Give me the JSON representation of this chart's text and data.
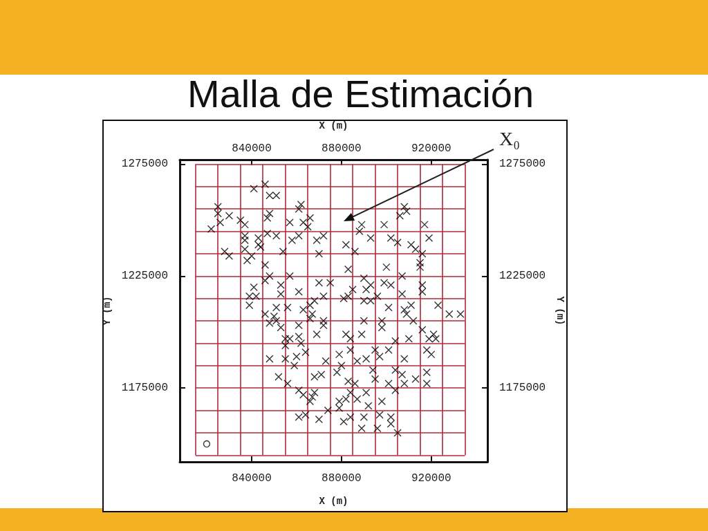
{
  "chart_data": {
    "type": "scatter",
    "title": "Malla de Estimación",
    "xlabel": "X (m)",
    "ylabel": "Y (m)",
    "x2label": "X (m)",
    "y2label": "Y (m)",
    "xlim": [
      808000,
      945000
    ],
    "ylim": [
      1142000,
      1277000
    ],
    "xticks": [
      840000,
      880000,
      920000
    ],
    "yticks": [
      1175000,
      1225000,
      1275000
    ],
    "x2lim": [
      808000,
      945000
    ],
    "x2ticks": [
      840000,
      880000,
      920000
    ],
    "y2lim": [
      1142000,
      1277000
    ],
    "y2ticks": [
      1175000,
      1225000,
      1275000
    ],
    "marker": "cross",
    "series": [
      {
        "color": "#000000",
        "x": [
          841000,
          846000,
          848000,
          851000,
          825000,
          825000,
          826000,
          822000,
          830000,
          835000,
          837000,
          837000,
          837000,
          843000,
          843000,
          844000,
          847000,
          848000,
          847000,
          851000,
          828000,
          830000,
          837000,
          838000,
          840000,
          854000,
          846000,
          848000,
          846000,
          857000,
          857000,
          862000,
          861000,
          863000,
          866000,
          865000,
          858000,
          861000,
          869000,
          872000,
          870000,
          841000,
          839000,
          842000,
          839000,
          853000,
          853000,
          861000,
          870000,
          875000,
          872000,
          868000,
          851000,
          856000,
          863000,
          866000,
          889000,
          888000,
          899000,
          908000,
          909000,
          906000,
          917000,
          919000,
          893000,
          902000,
          905000,
          911000,
          913000,
          916000,
          915000,
          915000,
          882000,
          886000,
          883000,
          900000,
          907000,
          890000,
          893000,
          891000,
          899000,
          902000,
          885000,
          881000,
          883000,
          890000,
          893000,
          896000,
          907000,
          916000,
          916000,
          901000,
          908000,
          911000,
          923000,
          846000,
          850000,
          848000,
          851000,
          867000,
          866000,
          853000,
          861000,
          869000,
          872000,
          872000,
          855000,
          857000,
          861000,
          862000,
          855000,
          864000,
          860000,
          855000,
          848000,
          859000,
          852000,
          856000,
          868000,
          871000,
          873000,
          861000,
          863000,
          868000,
          867000,
          866000,
          861000,
          864000,
          870000,
          874000,
          909000,
          912000,
          928000,
          933000,
          890000,
          898000,
          898000,
          882000,
          884000,
          889000,
          904000,
          910000,
          916000,
          921000,
          919000,
          922000,
          879000,
          884000,
          887000,
          891000,
          895000,
          897000,
          901000,
          908000,
          918000,
          920000,
          880000,
          878000,
          883000,
          886000,
          894000,
          895000,
          904000,
          907000,
          908000,
          913000,
          918000,
          918000,
          901000,
          904000,
          879000,
          882000,
          887000,
          891000,
          884000,
          879000,
          892000,
          898000,
          890000,
          884000,
          881000,
          889000,
          897000,
          902000,
          896000,
          902000,
          905000
        ],
        "values": [
          1264000,
          1266000,
          1261000,
          1261000,
          1256000,
          1253000,
          1249000,
          1246000,
          1252000,
          1250000,
          1248000,
          1243000,
          1241000,
          1242000,
          1239000,
          1238000,
          1251000,
          1253000,
          1244000,
          1243000,
          1236000,
          1234000,
          1237000,
          1232000,
          1234000,
          1236000,
          1230000,
          1225000,
          1223000,
          1225000,
          1249000,
          1257000,
          1255000,
          1249000,
          1251000,
          1247000,
          1241000,
          1243000,
          1241000,
          1243000,
          1235000,
          1220000,
          1216000,
          1216000,
          1212000,
          1217000,
          1221000,
          1218000,
          1222000,
          1222000,
          1216000,
          1214000,
          1211000,
          1211000,
          1210000,
          1212000,
          1248000,
          1245000,
          1248000,
          1256000,
          1254000,
          1252000,
          1248000,
          1242000,
          1242000,
          1242000,
          1240000,
          1239000,
          1237000,
          1235000,
          1231000,
          1229000,
          1239000,
          1236000,
          1228000,
          1229000,
          1225000,
          1224000,
          1221000,
          1219000,
          1222000,
          1221000,
          1219000,
          1215000,
          1216000,
          1214000,
          1214000,
          1216000,
          1217000,
          1221000,
          1218000,
          1211000,
          1210000,
          1212000,
          1212000,
          1208000,
          1207000,
          1204000,
          1205000,
          1208000,
          1206000,
          1202000,
          1203000,
          1199000,
          1205000,
          1203000,
          1197000,
          1197000,
          1198000,
          1195000,
          1194000,
          1191000,
          1189000,
          1188000,
          1188000,
          1185000,
          1180000,
          1177000,
          1180000,
          1181000,
          1187000,
          1174000,
          1172000,
          1173000,
          1171000,
          1169000,
          1162000,
          1163000,
          1161000,
          1165000,
          1208000,
          1205000,
          1208000,
          1208000,
          1205000,
          1205000,
          1202000,
          1199000,
          1197000,
          1199000,
          1196000,
          1197000,
          1201000,
          1199000,
          1197000,
          1197000,
          1190000,
          1192000,
          1187000,
          1188000,
          1192000,
          1189000,
          1192000,
          1188000,
          1192000,
          1190000,
          1185000,
          1182000,
          1178000,
          1177000,
          1183000,
          1179000,
          1183000,
          1181000,
          1177000,
          1179000,
          1182000,
          1177000,
          1177000,
          1174000,
          1169000,
          1170000,
          1170000,
          1173000,
          1173000,
          1166000,
          1167000,
          1169000,
          1162000,
          1162000,
          1160000,
          1157000,
          1163000,
          1162000,
          1157000,
          1159000,
          1155000
        ]
      },
      {
        "color": "#000000",
        "marker": "circle",
        "x": [
          820000
        ],
        "values": [
          1150000
        ]
      }
    ],
    "ref_lines": [
      {
        "axis": "x",
        "value": 815000,
        "color": "#b0283a"
      },
      {
        "axis": "x",
        "value": 825000,
        "color": "#b0283a"
      },
      {
        "axis": "x",
        "value": 835000,
        "color": "#b0283a"
      },
      {
        "axis": "x",
        "value": 845000,
        "color": "#b0283a"
      },
      {
        "axis": "x",
        "value": 855000,
        "color": "#b0283a"
      },
      {
        "axis": "x",
        "value": 865000,
        "color": "#b0283a"
      },
      {
        "axis": "x",
        "value": 875000,
        "color": "#b0283a"
      },
      {
        "axis": "x",
        "value": 885000,
        "color": "#b0283a"
      },
      {
        "axis": "x",
        "value": 895000,
        "color": "#b0283a"
      },
      {
        "axis": "x",
        "value": 905000,
        "color": "#b0283a"
      },
      {
        "axis": "x",
        "value": 915000,
        "color": "#b0283a"
      },
      {
        "axis": "x",
        "value": 925000,
        "color": "#b0283a"
      },
      {
        "axis": "x",
        "value": 935000,
        "color": "#b0283a"
      },
      {
        "axis": "y",
        "value": 1145000,
        "color": "#b0283a"
      },
      {
        "axis": "y",
        "value": 1155000,
        "color": "#b0283a"
      },
      {
        "axis": "y",
        "value": 1165000,
        "color": "#b0283a"
      },
      {
        "axis": "y",
        "value": 1175000,
        "color": "#b0283a"
      },
      {
        "axis": "y",
        "value": 1185000,
        "color": "#b0283a"
      },
      {
        "axis": "y",
        "value": 1195000,
        "color": "#b0283a"
      },
      {
        "axis": "y",
        "value": 1205000,
        "color": "#b0283a"
      },
      {
        "axis": "y",
        "value": 1215000,
        "color": "#b0283a"
      },
      {
        "axis": "y",
        "value": 1225000,
        "color": "#b0283a"
      },
      {
        "axis": "y",
        "value": 1235000,
        "color": "#b0283a"
      },
      {
        "axis": "y",
        "value": 1245000,
        "color": "#b0283a"
      },
      {
        "axis": "y",
        "value": 1255000,
        "color": "#b0283a"
      },
      {
        "axis": "y",
        "value": 1265000,
        "color": "#b0283a"
      },
      {
        "axis": "y",
        "value": 1275000,
        "color": "#b0283a"
      }
    ],
    "annotations": [
      "X₀"
    ]
  }
}
